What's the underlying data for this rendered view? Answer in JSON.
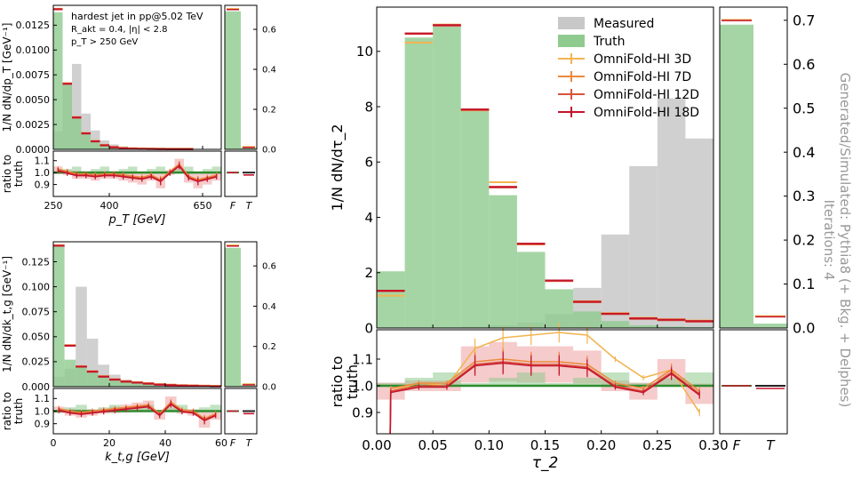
{
  "chart_data": {
    "type": "histogram",
    "colors": {
      "measured": "#c8c8c8",
      "truth": "#8fcb8f",
      "truth_line": "#2e8b2e",
      "of3": "#f3b451",
      "of7": "#ec8a3c",
      "of12": "#d9533a",
      "of18": "#c4142c"
    },
    "legend": [
      "Measured",
      "Truth",
      "OmniFold-HI 3D",
      "OmniFold-HI 7D",
      "OmniFold-HI 12D",
      "OmniFold-HI 18D"
    ],
    "side_label": "Generated/Simulated: Pythia8 (+ Bkg. + Delphes)",
    "side_label_top": "Iterations: 4",
    "annotation": [
      "hardest jet in pp@5.02 TeV",
      "R_akt = 0.4, |η| < 2.8",
      "p_T > 250 GeV"
    ],
    "ratio_ylabel": [
      "ratio to",
      "truth"
    ],
    "fake_labels": [
      "F",
      "T"
    ],
    "panels": {
      "pt": {
        "xlabel": "p_T [GeV]",
        "ylabel": "1/N dN/dp_T [GeV⁻¹]",
        "xlim": [
          250,
          700
        ],
        "ylim": [
          0,
          0.0145
        ],
        "yticks": [
          0.0,
          0.0025,
          0.005,
          0.0075,
          0.01,
          0.0125
        ],
        "ytick_labels": [
          "0.0000",
          "0.0025",
          "0.0050",
          "0.0075",
          "0.0100",
          "0.0125"
        ],
        "xticks": [
          250,
          400,
          650
        ],
        "xtick_labels": [
          "250",
          "400",
          "650"
        ],
        "edges": [
          250,
          275,
          300,
          325,
          350,
          375,
          400,
          425,
          450,
          475,
          500,
          525,
          550,
          575,
          600,
          625,
          650,
          675,
          700
        ],
        "truth": [
          0.0138,
          0.0066,
          0.0032,
          0.0016,
          0.0008,
          0.0004,
          0.0002,
          0.0001,
          6e-05,
          4e-05,
          3e-05,
          2e-05,
          1e-05,
          1e-05,
          1e-05,
          0.0,
          0.0,
          0.0
        ],
        "measured": [
          0.0018,
          0.0066,
          0.0086,
          0.0036,
          0.0019,
          0.0009,
          0.0005,
          0.0003,
          0.0002,
          0.0001,
          5e-05,
          3e-05,
          2e-05,
          1e-05,
          1e-05,
          0.0,
          0.0,
          0.0
        ],
        "unfolded": [
          0.0141,
          0.0066,
          0.0032,
          0.0016,
          0.0008,
          0.0004,
          0.0002,
          0.0001,
          6e-05,
          4e-05,
          3e-05,
          2e-05,
          1e-05,
          1e-05,
          1e-05,
          0.0,
          0.0,
          0.0
        ],
        "ratio_ylim": [
          0.8,
          1.18
        ],
        "ratio_ticks": [
          0.9,
          1.0,
          1.1
        ],
        "ratio_tick_labels": [
          "0.9",
          "1.0",
          "1.1"
        ],
        "ratio": [
          1.02,
          1.0,
          0.98,
          0.98,
          0.97,
          0.98,
          0.98,
          0.97,
          0.96,
          0.95,
          0.97,
          0.93,
          1.0,
          1.06,
          0.96,
          0.93,
          0.95,
          0.97
        ],
        "fake_ylim": [
          0,
          0.72
        ],
        "fake_ticks": [
          0.0,
          0.2,
          0.4,
          0.6
        ],
        "fake_tick_labels": [
          "0.0",
          "0.2",
          "0.4",
          "0.6"
        ],
        "fake_truth": [
          0.69,
          0.01
        ],
        "fake_unfolded": [
          0.7,
          0.01
        ],
        "fake_ratio": [
          1.0,
          0.98
        ]
      },
      "kt": {
        "xlabel": "k_t,g [GeV]",
        "ylabel": "1/N dN/dk_t,g [GeV⁻¹]",
        "xlim": [
          0,
          60
        ],
        "ylim": [
          0,
          0.145
        ],
        "yticks": [
          0.0,
          0.025,
          0.05,
          0.075,
          0.1,
          0.125
        ],
        "ytick_labels": [
          "0.000",
          "0.025",
          "0.050",
          "0.075",
          "0.100",
          "0.125"
        ],
        "xticks": [
          0,
          20,
          40,
          60
        ],
        "xtick_labels": [
          "0",
          "20",
          "40",
          "60"
        ],
        "edges": [
          0,
          4,
          8,
          12,
          16,
          20,
          24,
          28,
          32,
          36,
          40,
          44,
          48,
          52,
          56,
          60
        ],
        "truth": [
          0.14,
          0.027,
          0.02,
          0.015,
          0.01,
          0.007,
          0.005,
          0.004,
          0.003,
          0.002,
          0.0015,
          0.001,
          0.0008,
          0.0005,
          0.0003
        ],
        "measured": [
          0.01,
          0.018,
          0.1,
          0.048,
          0.022,
          0.012,
          0.007,
          0.004,
          0.003,
          0.002,
          0.0012,
          0.0008,
          0.0005,
          0.0003,
          0.0002
        ],
        "unfolded": [
          0.141,
          0.041,
          0.02,
          0.015,
          0.01,
          0.007,
          0.005,
          0.004,
          0.003,
          0.002,
          0.0015,
          0.001,
          0.0008,
          0.0005,
          0.0003
        ],
        "ratio_ylim": [
          0.82,
          1.18
        ],
        "ratio_ticks": [
          0.9,
          1.0,
          1.1
        ],
        "ratio_tick_labels": [
          "0.9",
          "1.0",
          "1.1"
        ],
        "ratio": [
          1.01,
          0.99,
          0.98,
          0.99,
          1.0,
          1.01,
          1.02,
          1.03,
          1.04,
          0.97,
          1.06,
          1.0,
          0.99,
          0.93,
          0.97
        ],
        "fake_ylim": [
          0,
          0.72
        ],
        "fake_ticks": [
          0.0,
          0.2,
          0.4,
          0.6
        ],
        "fake_tick_labels": [
          "0.0",
          "0.2",
          "0.4",
          "0.6"
        ],
        "fake_truth": [
          0.69,
          0.01
        ],
        "fake_unfolded": [
          0.7,
          0.01
        ],
        "fake_ratio": [
          1.0,
          0.98
        ]
      },
      "tau": {
        "xlabel": "τ_2",
        "ylabel": "1/N dN/dτ_2",
        "xlim": [
          0.0,
          0.3
        ],
        "ylim": [
          0,
          11.6
        ],
        "yticks": [
          0,
          2,
          4,
          6,
          8,
          10
        ],
        "ytick_labels": [
          "0",
          "2",
          "4",
          "6",
          "8",
          "10"
        ],
        "xticks": [
          0.0,
          0.05,
          0.1,
          0.15,
          0.2,
          0.25,
          0.3
        ],
        "xtick_labels": [
          "0.00",
          "0.05",
          "0.10",
          "0.15",
          "0.20",
          "0.25",
          "0.30"
        ],
        "edges": [
          0.0,
          0.025,
          0.05,
          0.075,
          0.1,
          0.125,
          0.15,
          0.175,
          0.2,
          0.225,
          0.25,
          0.275,
          0.3
        ],
        "truth": [
          2.05,
          10.5,
          10.9,
          7.9,
          4.8,
          2.75,
          1.4,
          0.6,
          0.25,
          0.1,
          0.05,
          0.03
        ],
        "measured": [
          0.0,
          0.0,
          0.0,
          0.05,
          0.1,
          0.2,
          0.5,
          1.45,
          3.38,
          5.85,
          8.3,
          6.85
        ],
        "unfolded": [
          1.35,
          10.65,
          10.95,
          7.9,
          5.1,
          3.05,
          1.72,
          0.95,
          0.52,
          0.35,
          0.3,
          0.25
        ],
        "unfolded_3d": [
          1.15,
          10.3,
          10.95,
          7.85,
          5.25,
          3.0,
          1.68,
          0.95,
          0.52,
          0.35,
          0.3,
          0.25
        ],
        "ratio_ylim": [
          0.82,
          1.21
        ],
        "ratio_ticks": [
          0.9,
          1.0,
          1.1
        ],
        "ratio_tick_labels": [
          "0.9",
          "1.0",
          "1.1"
        ],
        "ratio": [
          0.98,
          1.0,
          1.0,
          1.08,
          1.09,
          1.08,
          1.08,
          1.07,
          1.0,
          0.98,
          1.05,
          0.97
        ],
        "ratio_3d": [
          0.98,
          1.01,
          1.0,
          1.14,
          1.18,
          1.19,
          1.2,
          1.19,
          1.1,
          1.03,
          1.06,
          0.9
        ],
        "fake_ylim": [
          0,
          0.73
        ],
        "fake_ticks": [
          0.0,
          0.1,
          0.2,
          0.3,
          0.4,
          0.5,
          0.6,
          0.7
        ],
        "fake_tick_labels": [
          "0.0",
          "0.1",
          "0.2",
          "0.3",
          "0.4",
          "0.5",
          "0.6",
          "0.7"
        ],
        "fake_truth": [
          0.69,
          0.01
        ],
        "fake_unfolded": [
          0.7,
          0.026
        ],
        "fake_ratio": [
          1.0,
          0.99
        ]
      }
    }
  }
}
